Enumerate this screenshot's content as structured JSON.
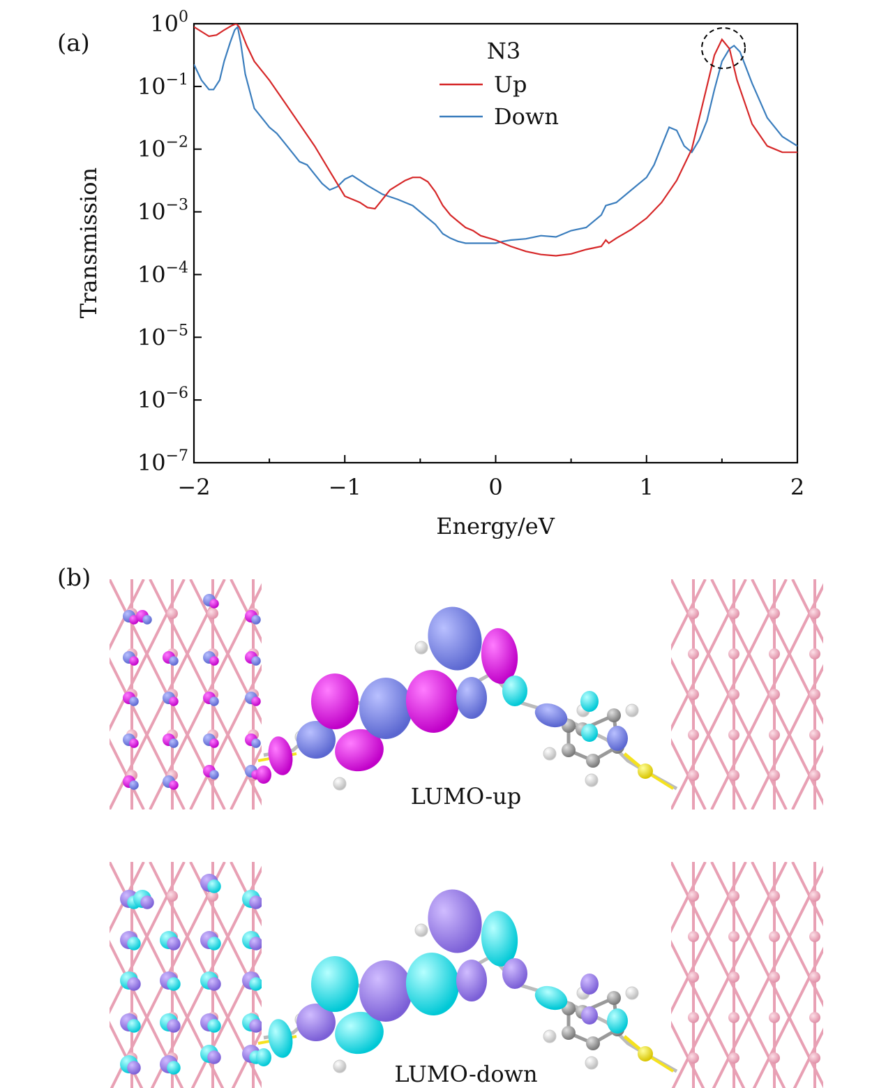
{
  "panel_a_label": "(a)",
  "panel_b_label": "(b)",
  "chart_data": {
    "type": "line",
    "title": "",
    "xlabel": "Energy/eV",
    "ylabel": "Transmission",
    "xlim": [
      -2,
      2
    ],
    "ylim_log10": [
      -7,
      0
    ],
    "yscale": "log",
    "x_ticks": [
      -2,
      -1,
      0,
      1,
      2
    ],
    "x_tick_labels": [
      "−2",
      "−1",
      "0",
      "1",
      "2"
    ],
    "y_tick_exponents": [
      0,
      -1,
      -2,
      -3,
      -4,
      -5,
      -6,
      -7
    ],
    "y_tick_base": "10",
    "y_tick_exp_labels": [
      "0",
      "−1",
      "−2",
      "−3",
      "−4",
      "−5",
      "−6",
      "−7"
    ],
    "legend_title": "N3",
    "legend_position": "top-center",
    "series": [
      {
        "name": "Up",
        "color": "#d62728",
        "x": [
          -2.0,
          -1.9,
          -1.85,
          -1.8,
          -1.75,
          -1.72,
          -1.7,
          -1.65,
          -1.6,
          -1.5,
          -1.4,
          -1.3,
          -1.2,
          -1.1,
          -1.0,
          -0.95,
          -0.9,
          -0.85,
          -0.8,
          -0.75,
          -0.7,
          -0.6,
          -0.55,
          -0.5,
          -0.45,
          -0.4,
          -0.35,
          -0.3,
          -0.25,
          -0.2,
          -0.15,
          -0.1,
          0.0,
          0.1,
          0.2,
          0.3,
          0.4,
          0.5,
          0.6,
          0.7,
          0.73,
          0.75,
          0.8,
          0.9,
          1.0,
          1.1,
          1.2,
          1.3,
          1.4,
          1.45,
          1.5,
          1.55,
          1.6,
          1.7,
          1.8,
          1.9,
          2.0
        ],
        "y_log10": [
          -0.05,
          -0.2,
          -0.18,
          -0.1,
          -0.03,
          0.0,
          -0.05,
          -0.35,
          -0.6,
          -0.9,
          -1.25,
          -1.6,
          -1.95,
          -2.35,
          -2.75,
          -2.8,
          -2.85,
          -2.93,
          -2.95,
          -2.8,
          -2.65,
          -2.5,
          -2.45,
          -2.45,
          -2.52,
          -2.68,
          -2.9,
          -3.05,
          -3.15,
          -3.25,
          -3.3,
          -3.38,
          -3.45,
          -3.55,
          -3.63,
          -3.68,
          -3.7,
          -3.67,
          -3.6,
          -3.55,
          -3.45,
          -3.5,
          -3.42,
          -3.28,
          -3.1,
          -2.85,
          -2.5,
          -2.0,
          -1.0,
          -0.5,
          -0.25,
          -0.4,
          -0.9,
          -1.6,
          -1.95,
          -2.05,
          -2.05
        ]
      },
      {
        "name": "Down",
        "color": "#3a7dbd",
        "x": [
          -2.0,
          -1.95,
          -1.9,
          -1.87,
          -1.83,
          -1.8,
          -1.76,
          -1.73,
          -1.71,
          -1.69,
          -1.66,
          -1.6,
          -1.55,
          -1.5,
          -1.45,
          -1.4,
          -1.35,
          -1.3,
          -1.25,
          -1.2,
          -1.15,
          -1.1,
          -1.05,
          -1.0,
          -0.95,
          -0.9,
          -0.85,
          -0.8,
          -0.75,
          -0.7,
          -0.65,
          -0.6,
          -0.55,
          -0.5,
          -0.45,
          -0.4,
          -0.35,
          -0.3,
          -0.25,
          -0.2,
          -0.1,
          0.0,
          0.05,
          0.1,
          0.2,
          0.3,
          0.4,
          0.5,
          0.6,
          0.7,
          0.73,
          0.8,
          0.9,
          1.0,
          1.05,
          1.1,
          1.15,
          1.2,
          1.25,
          1.3,
          1.35,
          1.4,
          1.45,
          1.5,
          1.55,
          1.58,
          1.62,
          1.7,
          1.8,
          1.9,
          2.0
        ],
        "y_log10": [
          -0.65,
          -0.9,
          -1.05,
          -1.05,
          -0.9,
          -0.6,
          -0.3,
          -0.1,
          -0.05,
          -0.3,
          -0.8,
          -1.35,
          -1.5,
          -1.65,
          -1.75,
          -1.9,
          -2.05,
          -2.2,
          -2.25,
          -2.4,
          -2.55,
          -2.65,
          -2.6,
          -2.48,
          -2.42,
          -2.5,
          -2.58,
          -2.65,
          -2.72,
          -2.76,
          -2.8,
          -2.85,
          -2.9,
          -3.0,
          -3.1,
          -3.2,
          -3.35,
          -3.42,
          -3.47,
          -3.5,
          -3.5,
          -3.5,
          -3.47,
          -3.45,
          -3.43,
          -3.38,
          -3.4,
          -3.3,
          -3.25,
          -3.05,
          -2.9,
          -2.85,
          -2.65,
          -2.45,
          -2.25,
          -1.95,
          -1.65,
          -1.7,
          -1.95,
          -2.05,
          -1.85,
          -1.55,
          -1.05,
          -0.6,
          -0.4,
          -0.35,
          -0.45,
          -0.95,
          -1.5,
          -1.8,
          -1.95
        ]
      }
    ],
    "annotation": "dashed circle around peak near 1.5 eV"
  },
  "molecule_captions": {
    "up": "LUMO-up",
    "down": "LUMO-down"
  },
  "colors": {
    "up_line": "#d62728",
    "down_line": "#3a7dbd",
    "electrode": "#e8a0b4",
    "orbital_magenta": "#e020e0",
    "orbital_blue": "#7f8ae8",
    "orbital_cyan": "#1ee6ee",
    "orbital_purple": "#9a7ce8",
    "sulfur": "#f5e21f",
    "carbon": "#9a9a9a",
    "hydrogen": "#f2f2f2"
  }
}
